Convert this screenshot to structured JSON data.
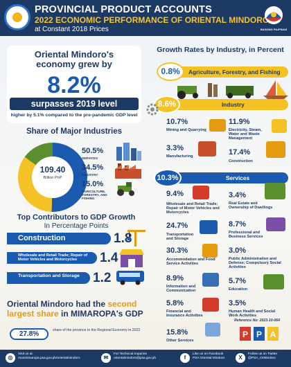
{
  "header": {
    "title": "PROVINCIAL PRODUCT ACCOUNTS",
    "subtitle": "2022 ECONOMIC PERFORMANCE OF ORIENTAL MINDORO",
    "basis": "at Constant 2018 Prices",
    "seal_text": "BAGONG PILIPINAS"
  },
  "headline": {
    "line1": "Oriental Mindoro's",
    "line2": "economy grew by",
    "growth": "8.2%",
    "surpasses": "surpasses 2019 level",
    "note": "higher by 5.1% compared to the pre-pandemic GDP level"
  },
  "share": {
    "title": "Share of Major Industries",
    "gdp_value": "109.40",
    "gdp_unit": "Billion PhP",
    "items": [
      {
        "pct": "50.5%",
        "label": "SERVICES"
      },
      {
        "pct": "34.5%",
        "label": "INDUSTRY"
      },
      {
        "pct": "15.0%",
        "label": "AGRICULTURE, FORESTRY, AND FISHING"
      }
    ]
  },
  "contributors": {
    "title": "Top Contributors to GDP Growth",
    "subtitle": "In Percentage Points",
    "items": [
      {
        "label": "Construction",
        "value": "1.8"
      },
      {
        "label": "Wholesale and Retail Trade; Repair of Motor Vehicles and Motorcycles",
        "value": "1.4"
      },
      {
        "label": "Transportation and Storage",
        "value": "1.2"
      }
    ]
  },
  "gdp_share": {
    "line1a": "Oriental Mindoro had the ",
    "line1b": "second",
    "line2a": "largest share",
    "line2b": " in MIMAROPA's GDP",
    "pct": "27.8%",
    "note": "share of the province to the Regional Economy in 2022"
  },
  "growth_rates": {
    "title": "Growth Rates by Industry, in Percent",
    "agri": {
      "pct": "0.8%",
      "label": "Agriculture, Forestry, and Fishing"
    },
    "industry": {
      "pct": "8.6%",
      "label": "Industry"
    },
    "industry_items": [
      {
        "pct": "10.7%",
        "label": "Mining and Quarrying"
      },
      {
        "pct": "11.9%",
        "label": "Electricity, Steam, Water and Waste Management"
      },
      {
        "pct": "3.3%",
        "label": "Manufacturing"
      },
      {
        "pct": "17.4%",
        "label": "Construction"
      }
    ],
    "services": {
      "pct": "10.3%",
      "label": "Services"
    },
    "services_items": [
      {
        "pct": "9.4%",
        "label": "Wholesale and Retail Trade; Repair of Motor Vehicles and Motorcycles"
      },
      {
        "pct": "3.4%",
        "label": "Real Estate and Ownership of Dwellings"
      },
      {
        "pct": "24.7%",
        "label": "Transportation and Storage"
      },
      {
        "pct": "8.7%",
        "label": "Professional and Business Services"
      },
      {
        "pct": "30.3%",
        "label": "Accommodation and Food Service Activities"
      },
      {
        "pct": "3.0%",
        "label": "Public Administration and Defense; Compulsory Social Activities"
      },
      {
        "pct": "8.9%",
        "label": "Information and Communication"
      },
      {
        "pct": "5.7%",
        "label": "Education"
      },
      {
        "pct": "5.8%",
        "label": "Financial and Insurance Activities"
      },
      {
        "pct": "3.5%",
        "label": "Human Health and Social Work Activities"
      },
      {
        "pct": "15.8%",
        "label": "Other Services"
      }
    ]
  },
  "reference": "Reference No: 2023-10-064",
  "footer": {
    "visit_label": "Visit us at",
    "visit": "rsoomimaropa.psa.gov.ph/orientalmindoro",
    "tech_label": "For Technical Inquiries",
    "tech": "orientalmindoro@psa.gov.ph",
    "fb_label": "Like us on Facebook",
    "fb": "PSA Oriental Mindoro",
    "tw_label": "Follow us on Twitter",
    "tw": "@PSA_OrMindoro"
  },
  "colors": {
    "navy": "#1d3a64",
    "blue": "#1a5bb0",
    "yellow": "#f5c226",
    "green": "#5a8f2e"
  },
  "chart_data": [
    {
      "type": "pie",
      "title": "Share of Major Industries",
      "categories": [
        "SERVICES",
        "INDUSTRY",
        "AGRICULTURE, FORESTRY, AND FISHING"
      ],
      "values": [
        50.5,
        34.5,
        15.0
      ]
    },
    {
      "type": "bar",
      "title": "Top Contributors to GDP Growth",
      "categories": [
        "Construction",
        "Wholesale and Retail Trade; Repair of Motor Vehicles and Motorcycles",
        "Transportation and Storage"
      ],
      "values": [
        1.8,
        1.4,
        1.2
      ]
    },
    {
      "type": "table",
      "title": "Growth Rates by Industry, in Percent",
      "categories": [
        "Agriculture, Forestry, and Fishing",
        "Industry",
        "Mining and Quarrying",
        "Electricity, Steam, Water and Waste Management",
        "Manufacturing",
        "Construction",
        "Services",
        "Wholesale and Retail Trade; Repair of Motor Vehicles and Motorcycles",
        "Real Estate and Ownership of Dwellings",
        "Transportation and Storage",
        "Professional and Business Services",
        "Accommodation and Food Service Activities",
        "Public Administration and Defense; Compulsory Social Activities",
        "Information and Communication",
        "Education",
        "Financial and Insurance Activities",
        "Human Health and Social Work Activities",
        "Other Services"
      ],
      "values": [
        0.8,
        8.6,
        10.7,
        11.9,
        3.3,
        17.4,
        10.3,
        9.4,
        3.4,
        24.7,
        8.7,
        30.3,
        3.0,
        8.9,
        5.7,
        5.8,
        3.5,
        15.8
      ]
    }
  ]
}
